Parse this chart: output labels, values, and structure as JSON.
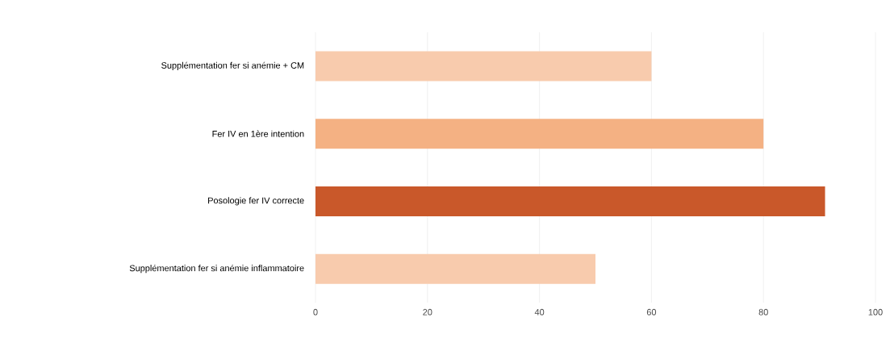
{
  "chart_data": {
    "type": "bar",
    "orientation": "horizontal",
    "categories": [
      "Supplémentation fer si anémie + CM",
      "Fer IV en 1ère intention",
      "Posologie fer IV correcte",
      "Supplémentation fer si anémie inflammatoire"
    ],
    "values": [
      60,
      80,
      91,
      50
    ],
    "colors": [
      "#f8cbad",
      "#f4b183",
      "#c9582a",
      "#f8cbad"
    ],
    "xlim": [
      0,
      100
    ],
    "xticks": [
      0,
      20,
      40,
      60,
      80,
      100
    ],
    "grid": "x"
  }
}
